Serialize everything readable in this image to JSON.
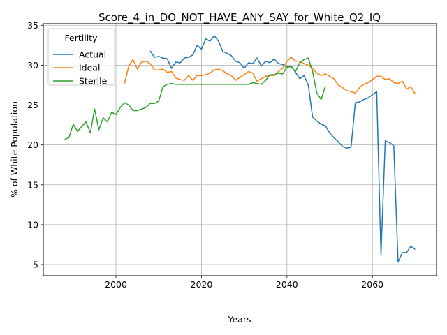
{
  "chart_data": {
    "type": "line",
    "title": "Score_4_in_DO_NOT_HAVE_ANY_SAY_for_White_Q2_IQ",
    "xlabel": "Years",
    "ylabel": "% of White Population",
    "xlim": [
      1983,
      2075
    ],
    "ylim": [
      3.6,
      35.2
    ],
    "xticks": [
      2000,
      2020,
      2040,
      2060
    ],
    "yticks": [
      5,
      10,
      15,
      20,
      25,
      30,
      35
    ],
    "grid": true,
    "legend": {
      "title": "Fertility",
      "location": "upper left",
      "entries": [
        "Actual",
        "Ideal",
        "Sterile"
      ]
    },
    "series": [
      {
        "name": "Actual",
        "color": "#1f77b4",
        "x": [
          2008,
          2009,
          2010,
          2011,
          2012,
          2013,
          2014,
          2015,
          2016,
          2017,
          2018,
          2019,
          2020,
          2021,
          2022,
          2023,
          2024,
          2025,
          2026,
          2027,
          2028,
          2029,
          2030,
          2031,
          2032,
          2033,
          2034,
          2035,
          2036,
          2037,
          2038,
          2039,
          2040,
          2041,
          2042,
          2043,
          2044,
          2045,
          2046,
          2047,
          2048,
          2049,
          2050,
          2051,
          2052,
          2053,
          2054,
          2055,
          2056,
          2057,
          2058,
          2059,
          2060,
          2061,
          2062,
          2063,
          2064,
          2065,
          2066,
          2067,
          2068,
          2069,
          2070
        ],
        "y": [
          31.8,
          31.0,
          31.1,
          30.9,
          30.8,
          29.6,
          30.4,
          30.3,
          30.9,
          31.0,
          31.3,
          32.5,
          32.0,
          33.3,
          33.0,
          33.7,
          33.0,
          31.7,
          31.5,
          31.2,
          30.5,
          30.3,
          29.6,
          30.3,
          30.2,
          30.9,
          29.9,
          30.5,
          30.3,
          30.8,
          30.2,
          30.1,
          29.7,
          29.9,
          29.1,
          28.3,
          28.7,
          27.5,
          23.5,
          23.0,
          22.6,
          22.4,
          21.5,
          20.9,
          20.4,
          19.8,
          19.6,
          19.7,
          25.3,
          25.4,
          25.7,
          25.9,
          26.3,
          26.7,
          6.2,
          20.5,
          20.3,
          19.9,
          5.3,
          6.5,
          6.5,
          7.3,
          6.9
        ]
      },
      {
        "name": "Ideal",
        "color": "#ff7f0e",
        "x": [
          2002,
          2003,
          2004,
          2005,
          2006,
          2007,
          2008,
          2009,
          2010,
          2011,
          2012,
          2013,
          2014,
          2015,
          2016,
          2017,
          2018,
          2019,
          2020,
          2021,
          2022,
          2023,
          2024,
          2025,
          2026,
          2027,
          2028,
          2029,
          2030,
          2031,
          2032,
          2033,
          2034,
          2035,
          2036,
          2037,
          2038,
          2039,
          2040,
          2041,
          2042,
          2043,
          2044,
          2045,
          2046,
          2047,
          2048,
          2049,
          2050,
          2051,
          2052,
          2053,
          2054,
          2055,
          2056,
          2057,
          2058,
          2059,
          2060,
          2061,
          2062,
          2063,
          2064,
          2065,
          2066,
          2067,
          2068,
          2069,
          2070
        ],
        "y": [
          27.7,
          29.9,
          30.7,
          29.5,
          30.4,
          30.5,
          30.2,
          29.4,
          29.4,
          29.5,
          29.1,
          29.2,
          28.4,
          28.2,
          28.1,
          28.7,
          28.1,
          28.7,
          28.7,
          28.8,
          29.0,
          29.4,
          29.5,
          29.3,
          28.9,
          28.7,
          28.1,
          28.5,
          28.8,
          29.2,
          29.0,
          28.0,
          28.3,
          28.6,
          28.7,
          28.7,
          29.2,
          29.6,
          30.5,
          31.0,
          30.5,
          30.5,
          30.2,
          30.0,
          29.6,
          29.0,
          28.7,
          28.9,
          28.6,
          28.3,
          27.5,
          27.2,
          26.8,
          26.7,
          26.5,
          27.2,
          27.6,
          27.8,
          28.2,
          28.6,
          28.6,
          28.2,
          28.3,
          27.8,
          27.7,
          28.0,
          27.0,
          27.3,
          26.4
        ]
      },
      {
        "name": "Sterile",
        "color": "#2ca02c",
        "x": [
          1988,
          1989,
          1990,
          1991,
          1992,
          1993,
          1994,
          1995,
          1996,
          1997,
          1998,
          1999,
          2000,
          2001,
          2002,
          2003,
          2004,
          2005,
          2006,
          2007,
          2008,
          2009,
          2010,
          2011,
          2012,
          2013,
          2014,
          2015,
          2016,
          2017,
          2018,
          2019,
          2020,
          2021,
          2022,
          2023,
          2024,
          2025,
          2026,
          2027,
          2028,
          2029,
          2030,
          2031,
          2032,
          2033,
          2034,
          2035,
          2036,
          2037,
          2038,
          2039,
          2040,
          2041,
          2042,
          2043,
          2044,
          2045,
          2046,
          2047,
          2048,
          2049
        ],
        "y": [
          20.7,
          20.9,
          22.6,
          21.7,
          22.3,
          22.9,
          21.5,
          24.5,
          21.9,
          23.4,
          22.9,
          24.1,
          23.8,
          24.7,
          25.3,
          25.0,
          24.3,
          24.3,
          24.5,
          24.7,
          25.2,
          25.2,
          25.5,
          27.3,
          27.6,
          27.7,
          27.6,
          27.6,
          27.6,
          27.6,
          27.6,
          27.6,
          27.6,
          27.6,
          27.6,
          27.6,
          27.6,
          27.6,
          27.6,
          27.6,
          27.6,
          27.6,
          27.6,
          27.6,
          27.8,
          27.7,
          27.6,
          28.1,
          28.8,
          28.8,
          29.0,
          28.9,
          29.8,
          29.8,
          29.2,
          30.3,
          30.7,
          30.9,
          29.2,
          26.5,
          25.7,
          27.4
        ]
      }
    ]
  }
}
